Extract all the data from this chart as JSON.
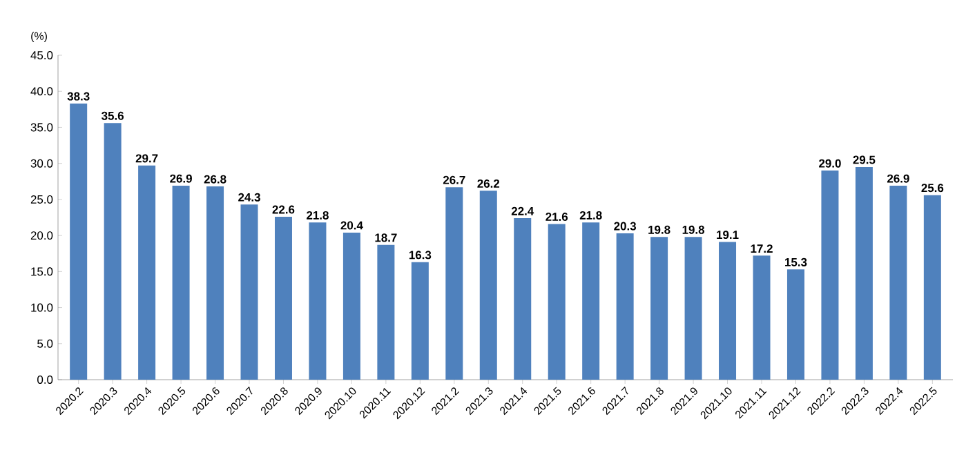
{
  "chart_data": {
    "type": "bar",
    "ylabel": "(%)",
    "categories": [
      "2020.2",
      "2020.3",
      "2020.4",
      "2020.5",
      "2020.6",
      "2020.7",
      "2020.8",
      "2020.9",
      "2020.10",
      "2020.11",
      "2020.12",
      "2021.2",
      "2021.3",
      "2021.4",
      "2021.5",
      "2021.6",
      "2021.7",
      "2021.8",
      "2021.9",
      "2021.10",
      "2021.11",
      "2021.12",
      "2022.2",
      "2022.3",
      "2022.4",
      "2022.5"
    ],
    "values": [
      38.3,
      35.6,
      29.7,
      26.9,
      26.8,
      24.3,
      22.6,
      21.8,
      20.4,
      18.7,
      16.3,
      26.7,
      26.2,
      22.4,
      21.6,
      21.8,
      20.3,
      19.8,
      19.8,
      19.1,
      17.2,
      15.3,
      29.0,
      29.5,
      26.9,
      25.6
    ],
    "value_labels": [
      "38.3",
      "35.6",
      "29.7",
      "26.9",
      "26.8",
      "24.3",
      "22.6",
      "21.8",
      "20.4",
      "18.7",
      "16.3",
      "26.7",
      "26.2",
      "22.4",
      "21.6",
      "21.8",
      "20.3",
      "19.8",
      "19.8",
      "19.1",
      "17.2",
      "15.3",
      "29.0",
      "29.5",
      "26.9",
      "25.6"
    ],
    "color": "#4f81bd",
    "grid": false,
    "ylim": [
      0,
      45
    ],
    "yticks": [
      {
        "value": 0,
        "label": "0.0"
      },
      {
        "value": 5,
        "label": "5.0"
      },
      {
        "value": 10,
        "label": "10.0"
      },
      {
        "value": 15,
        "label": "15.0"
      },
      {
        "value": 20,
        "label": "20.0"
      },
      {
        "value": 25,
        "label": "25.0"
      },
      {
        "value": 30,
        "label": "30.0"
      },
      {
        "value": 35,
        "label": "35.0"
      },
      {
        "value": 40,
        "label": "40.0"
      },
      {
        "value": 45,
        "label": "45.0"
      }
    ]
  }
}
